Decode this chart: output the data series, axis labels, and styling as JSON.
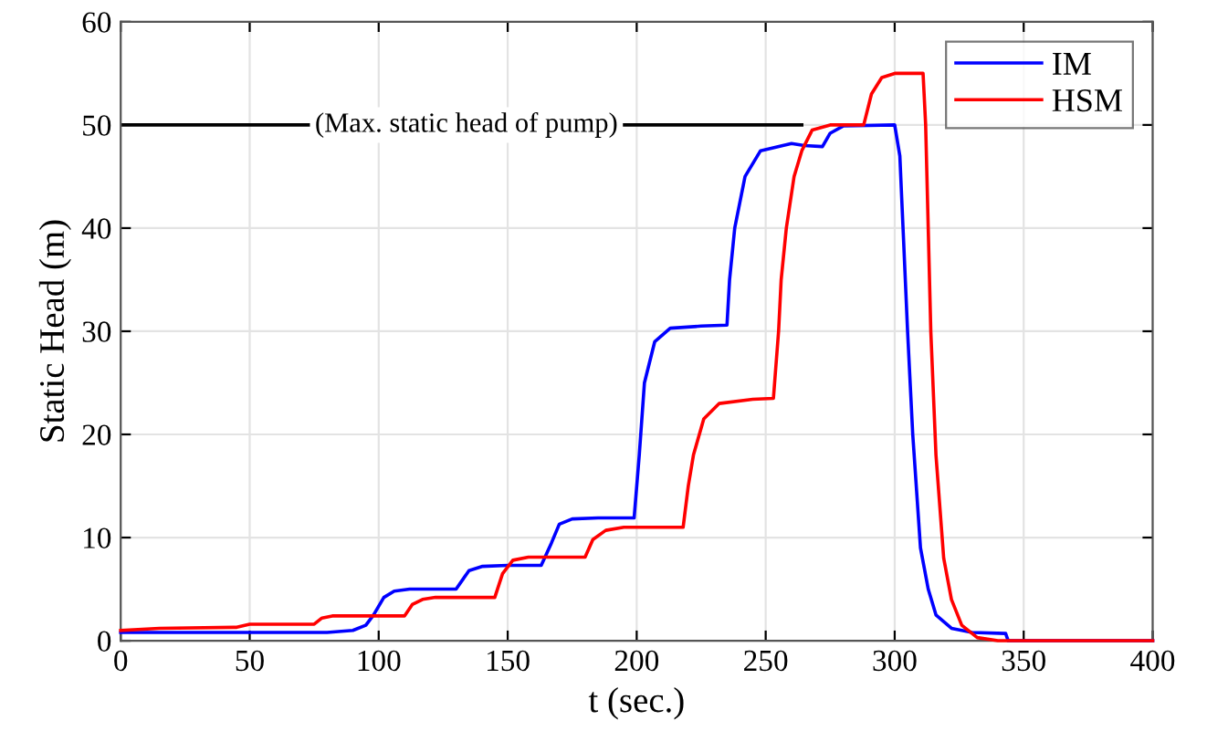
{
  "chart_data": {
    "type": "line",
    "xlabel": "t (sec.)",
    "ylabel": "Static Head (m)",
    "xlim": [
      0,
      400
    ],
    "ylim": [
      0,
      60
    ],
    "xticks": [
      0,
      50,
      100,
      150,
      200,
      250,
      300,
      350,
      400
    ],
    "yticks": [
      0,
      10,
      20,
      30,
      40,
      50,
      60
    ],
    "grid": true,
    "legend": "top right",
    "line_style": "solid",
    "marker": "none",
    "ref_lines": [
      {
        "axis": "y",
        "value": 50,
        "label": "(Max. static head of pump)",
        "color": "#000000",
        "line_style": "solid"
      }
    ],
    "series": [
      {
        "name": "IM",
        "color": "#0000ff",
        "x": [
          0,
          80,
          90,
          95,
          98,
          102,
          106,
          112,
          130,
          135,
          140,
          150,
          163,
          167,
          170,
          175,
          185,
          199,
          201,
          203,
          207,
          213,
          225,
          235,
          236,
          238,
          242,
          248,
          260,
          265,
          272,
          275,
          280,
          300,
          302,
          305,
          307,
          310,
          313,
          316,
          322,
          330,
          343,
          344,
          400
        ],
        "values": [
          0.8,
          0.8,
          1.0,
          1.5,
          2.5,
          4.2,
          4.8,
          5.0,
          5.0,
          6.8,
          7.2,
          7.3,
          7.3,
          9.5,
          11.3,
          11.8,
          11.9,
          11.9,
          18,
          25,
          29,
          30.3,
          30.5,
          30.6,
          35,
          40,
          45,
          47.5,
          48.2,
          48.0,
          47.9,
          49.2,
          49.9,
          50,
          47,
          30,
          20,
          9,
          5,
          2.5,
          1.2,
          0.8,
          0.7,
          0,
          0
        ]
      },
      {
        "name": "HSM",
        "color": "#ff0000",
        "x": [
          0,
          15,
          45,
          50,
          75,
          78,
          82,
          110,
          113,
          117,
          122,
          145,
          148,
          152,
          158,
          180,
          183,
          188,
          195,
          218,
          220,
          222,
          226,
          232,
          245,
          253,
          255,
          256,
          258,
          261,
          264,
          268,
          275,
          288,
          291,
          295,
          300,
          311,
          312,
          314,
          316,
          319,
          322,
          326,
          332,
          340,
          400
        ],
        "values": [
          1.0,
          1.2,
          1.3,
          1.6,
          1.6,
          2.2,
          2.4,
          2.4,
          3.5,
          4.0,
          4.2,
          4.2,
          6.5,
          7.8,
          8.1,
          8.1,
          9.8,
          10.7,
          11.0,
          11.0,
          15,
          18,
          21.5,
          23.0,
          23.4,
          23.5,
          30,
          35,
          40,
          45,
          47.5,
          49.5,
          50,
          50,
          53,
          54.6,
          55,
          55,
          50,
          30,
          18,
          8,
          4,
          1.5,
          0.3,
          0,
          0
        ]
      }
    ]
  }
}
